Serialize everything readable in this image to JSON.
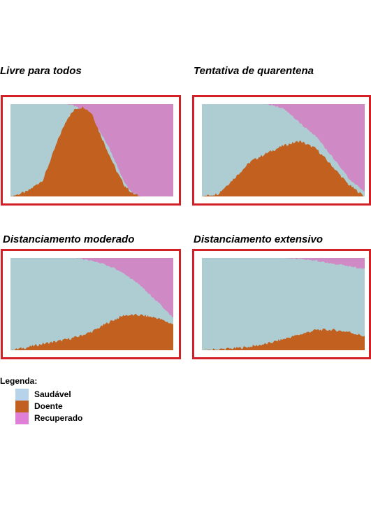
{
  "colors": {
    "healthy": "#aecdd2",
    "sick": "#c1601f",
    "recovered": "#cf8ac5",
    "frame": "#d32026"
  },
  "legend": {
    "title": "Legenda:",
    "items": [
      {
        "label": "Saudável",
        "color": "#b7d3e9"
      },
      {
        "label": "Doente",
        "color": "#c1601f"
      },
      {
        "label": "Recuperado",
        "color": "#e07fd8"
      }
    ]
  },
  "chart_data": [
    {
      "type": "area",
      "title": "Livre para todos",
      "stacking": "percent",
      "series_names": [
        "Saudável",
        "Doente",
        "Recuperado"
      ],
      "x": [
        0,
        0.1,
        0.2,
        0.3,
        0.35,
        0.4,
        0.45,
        0.5,
        0.55,
        0.6,
        0.65,
        0.7,
        0.75,
        0.8,
        1.0
      ],
      "series": [
        {
          "key": "sick",
          "values": [
            0,
            5,
            18,
            65,
            85,
            95,
            97,
            90,
            68,
            48,
            28,
            12,
            3,
            0,
            0
          ]
        },
        {
          "key": "recovered",
          "values": [
            0,
            0,
            0,
            0,
            0,
            2,
            8,
            20,
            30,
            45,
            65,
            85,
            97,
            100,
            100
          ]
        }
      ],
      "ylim": [
        0,
        100
      ]
    },
    {
      "type": "area",
      "title": "Tentativa de quarentena",
      "stacking": "percent",
      "series_names": [
        "Saudável",
        "Doente",
        "Recuperado"
      ],
      "x": [
        0,
        0.1,
        0.2,
        0.3,
        0.4,
        0.5,
        0.6,
        0.7,
        0.8,
        0.9,
        1.0
      ],
      "series": [
        {
          "key": "sick",
          "values": [
            0,
            3,
            20,
            38,
            47,
            55,
            60,
            52,
            33,
            13,
            0
          ]
        },
        {
          "key": "recovered",
          "values": [
            0,
            0,
            0,
            0,
            0,
            4,
            20,
            35,
            57,
            80,
            95
          ]
        }
      ],
      "ylim": [
        0,
        100
      ]
    },
    {
      "type": "area",
      "title": "Distanciamento moderado",
      "stacking": "percent",
      "series_names": [
        "Saudável",
        "Doente",
        "Recuperado"
      ],
      "x": [
        0,
        0.1,
        0.2,
        0.3,
        0.4,
        0.5,
        0.6,
        0.7,
        0.8,
        0.9,
        1.0
      ],
      "series": [
        {
          "key": "sick",
          "values": [
            0,
            3,
            7,
            10,
            14,
            20,
            30,
            38,
            38,
            35,
            28
          ]
        },
        {
          "key": "recovered",
          "values": [
            0,
            0,
            0,
            0,
            0,
            3,
            8,
            17,
            30,
            47,
            65
          ]
        }
      ],
      "ylim": [
        0,
        100
      ]
    },
    {
      "type": "area",
      "title": "Distanciamento extensivo",
      "stacking": "percent",
      "series_names": [
        "Saudável",
        "Doente",
        "Recuperado"
      ],
      "x": [
        0,
        0.1,
        0.2,
        0.3,
        0.4,
        0.5,
        0.6,
        0.7,
        0.8,
        0.9,
        1.0
      ],
      "series": [
        {
          "key": "sick",
          "values": [
            0,
            1,
            2,
            4,
            7,
            12,
            17,
            22,
            22,
            20,
            15
          ]
        },
        {
          "key": "recovered",
          "values": [
            0,
            0,
            0,
            0,
            0,
            0,
            1,
            3,
            6,
            9,
            12
          ]
        }
      ],
      "ylim": [
        0,
        100
      ]
    }
  ]
}
